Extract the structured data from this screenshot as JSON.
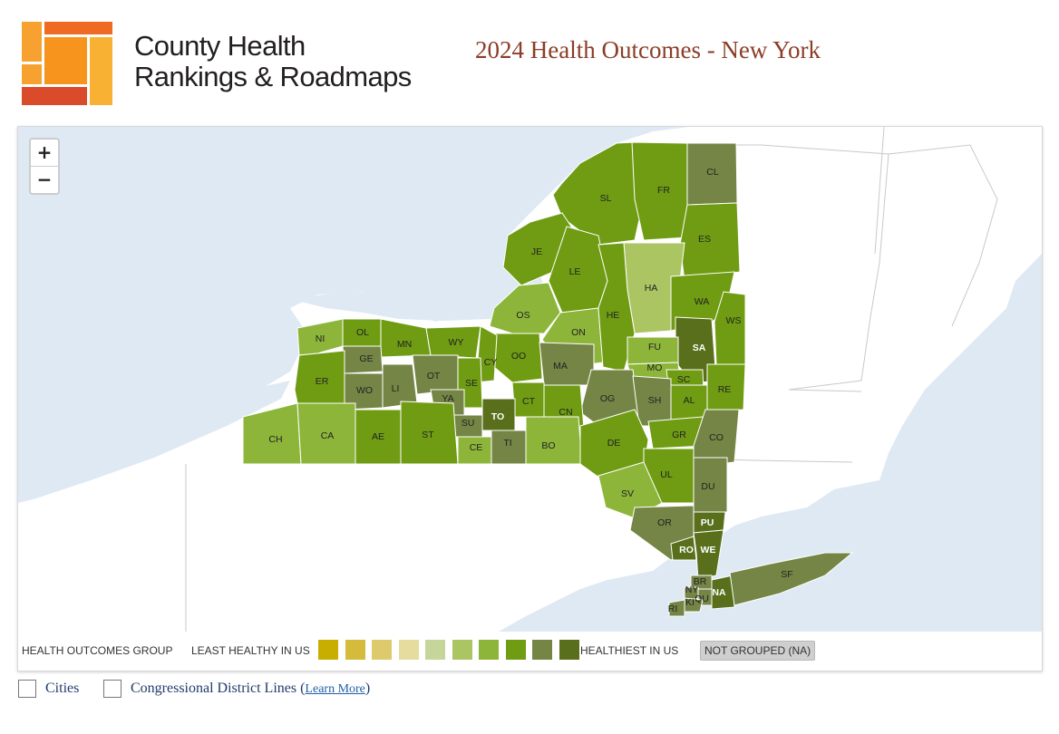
{
  "brand": {
    "line1": "County Health",
    "line2": "Rankings & Roadmaps"
  },
  "title": "2024 Health Outcomes - New York",
  "zoom": {
    "in": "+",
    "out": "−"
  },
  "legend": {
    "group_label": "HEALTH OUTCOMES GROUP",
    "least_label": "LEAST HEALTHY IN US",
    "healthiest_label": "HEALTHIEST IN US",
    "na_label": "NOT GROUPED (NA)",
    "colors": [
      "#c8ae00",
      "#d4bb3c",
      "#dcca6c",
      "#e6dc9e",
      "#c6d69a",
      "#abc563",
      "#8db53a",
      "#6f9c13",
      "#748545",
      "#596f1b"
    ]
  },
  "toggles": {
    "cities": "Cities",
    "districts": "Congressional District Lines",
    "learn_more": "Learn More"
  },
  "map": {
    "counties": [
      {
        "abbr": "SL",
        "group": 8
      },
      {
        "abbr": "FR",
        "group": 8
      },
      {
        "abbr": "CL",
        "group": 9
      },
      {
        "abbr": "JE",
        "group": 8
      },
      {
        "abbr": "LE",
        "group": 8
      },
      {
        "abbr": "ES",
        "group": 8
      },
      {
        "abbr": "HA",
        "group": 6
      },
      {
        "abbr": "OS",
        "group": 7
      },
      {
        "abbr": "ON",
        "group": 7
      },
      {
        "abbr": "HE",
        "group": 8
      },
      {
        "abbr": "WA",
        "group": 8
      },
      {
        "abbr": "NI",
        "group": 7
      },
      {
        "abbr": "OL",
        "group": 8
      },
      {
        "abbr": "MN",
        "group": 8
      },
      {
        "abbr": "WY",
        "group": 8
      },
      {
        "abbr": "SA",
        "group": 10
      },
      {
        "abbr": "WS",
        "group": 8
      },
      {
        "abbr": "GE",
        "group": 9
      },
      {
        "abbr": "OO",
        "group": 8
      },
      {
        "abbr": "FU",
        "group": 7
      },
      {
        "abbr": "MA",
        "group": 9
      },
      {
        "abbr": "CY",
        "group": 8
      },
      {
        "abbr": "MO",
        "group": 7
      },
      {
        "abbr": "ER",
        "group": 8
      },
      {
        "abbr": "WO",
        "group": 9
      },
      {
        "abbr": "LI",
        "group": 9
      },
      {
        "abbr": "OT",
        "group": 9
      },
      {
        "abbr": "SE",
        "group": 8
      },
      {
        "abbr": "SC",
        "group": 8
      },
      {
        "abbr": "YA",
        "group": 9
      },
      {
        "abbr": "OG",
        "group": 9
      },
      {
        "abbr": "SH",
        "group": 9
      },
      {
        "abbr": "AL",
        "group": 8
      },
      {
        "abbr": "RE",
        "group": 8
      },
      {
        "abbr": "CT",
        "group": 8
      },
      {
        "abbr": "TO",
        "group": 10
      },
      {
        "abbr": "SU",
        "group": 9
      },
      {
        "abbr": "CN",
        "group": 8
      },
      {
        "abbr": "CH",
        "group": 7
      },
      {
        "abbr": "CA",
        "group": 7
      },
      {
        "abbr": "AE",
        "group": 8
      },
      {
        "abbr": "ST",
        "group": 8
      },
      {
        "abbr": "CE",
        "group": 7
      },
      {
        "abbr": "TI",
        "group": 9
      },
      {
        "abbr": "BO",
        "group": 7
      },
      {
        "abbr": "DE",
        "group": 8
      },
      {
        "abbr": "GR",
        "group": 8
      },
      {
        "abbr": "CO",
        "group": 9
      },
      {
        "abbr": "UL",
        "group": 8
      },
      {
        "abbr": "DU",
        "group": 9
      },
      {
        "abbr": "SV",
        "group": 7
      },
      {
        "abbr": "OR",
        "group": 9
      },
      {
        "abbr": "PU",
        "group": 10
      },
      {
        "abbr": "RO",
        "group": 10
      },
      {
        "abbr": "WE",
        "group": 10
      },
      {
        "abbr": "BR",
        "group": 9
      },
      {
        "abbr": "NY",
        "group": 9
      },
      {
        "abbr": "QU",
        "group": 9
      },
      {
        "abbr": "KI",
        "group": 9
      },
      {
        "abbr": "RI",
        "group": 9
      },
      {
        "abbr": "NA",
        "group": 10
      },
      {
        "abbr": "SF",
        "group": 9
      }
    ]
  }
}
